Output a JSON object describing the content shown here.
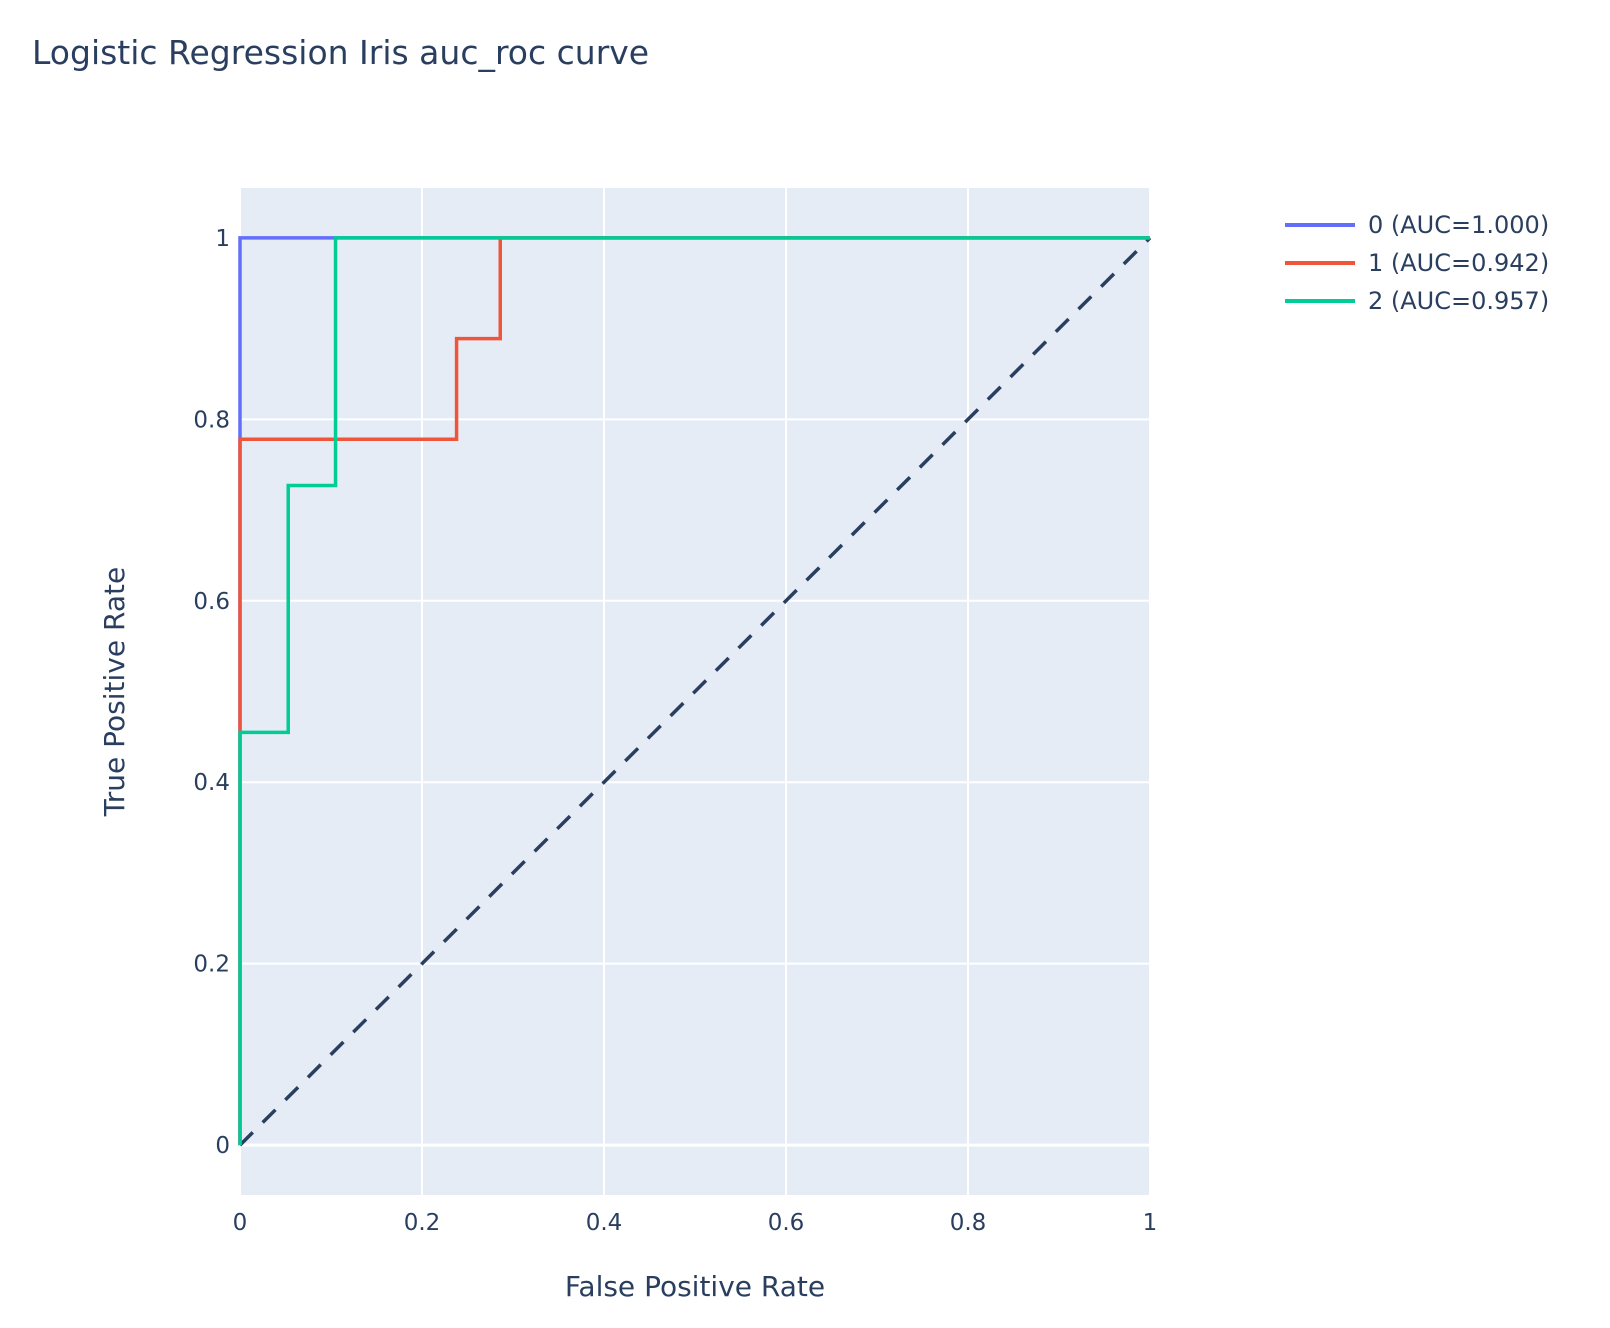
{
  "chart_data": {
    "type": "line",
    "title": "Logistic Regression Iris auc_roc curve",
    "xlabel": "False Positive Rate",
    "ylabel": "True Positive Rate",
    "xlim": [
      0,
      1
    ],
    "ylim": [
      -0.055,
      1.055
    ],
    "xticks": [
      0,
      0.2,
      0.4,
      0.6,
      0.8,
      1
    ],
    "xtick_labels": [
      "0",
      "0.2",
      "0.4",
      "0.6",
      "0.8",
      "1"
    ],
    "yticks": [
      0,
      0.2,
      0.4,
      0.6,
      0.8,
      1
    ],
    "ytick_labels": [
      "0",
      "0.2",
      "0.4",
      "0.6",
      "0.8",
      "1"
    ],
    "grid": true,
    "legend_position": "top-right-outside",
    "plot_background": "#e5ecf6",
    "series": [
      {
        "name": "0 (AUC=1.000)",
        "color": "#636efa",
        "x": [
          0,
          0,
          0.105,
          1
        ],
        "y": [
          0,
          1,
          1,
          1
        ]
      },
      {
        "name": "1 (AUC=0.942)",
        "color": "#ef553b",
        "x": [
          0,
          0,
          0,
          0.238,
          0.238,
          0.286,
          0.286,
          1
        ],
        "y": [
          0,
          0.778,
          0.778,
          0.778,
          0.889,
          0.889,
          1,
          1
        ]
      },
      {
        "name": "2 (AUC=0.957)",
        "color": "#00cc96",
        "x": [
          0,
          0,
          0.053,
          0.053,
          0.105,
          0.105,
          1
        ],
        "y": [
          0,
          0.455,
          0.455,
          0.727,
          0.727,
          1,
          1
        ]
      }
    ],
    "reference_line": {
      "x": [
        0,
        1
      ],
      "y": [
        0,
        1
      ],
      "color": "#2a3f5f",
      "style": "dashed"
    }
  }
}
